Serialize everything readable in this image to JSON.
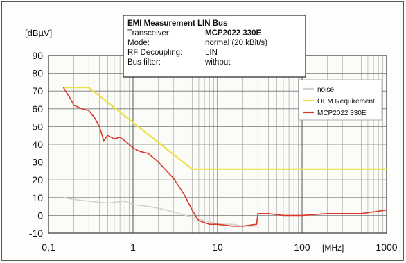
{
  "chart_data": {
    "type": "line",
    "ylabel": "[dBµV]",
    "xunit": "[MHz]",
    "xscale": "log",
    "xlim": [
      0.1,
      1000
    ],
    "ylim": [
      -10,
      90
    ],
    "yticks": [
      -10,
      0,
      10,
      20,
      30,
      40,
      50,
      60,
      70,
      80,
      90
    ],
    "xticks": [
      {
        "value": 0.1,
        "label": "0,1"
      },
      {
        "value": 1,
        "label": "1"
      },
      {
        "value": 10,
        "label": "10"
      },
      {
        "value": 100,
        "label": "100"
      },
      {
        "value": 1000,
        "label": "1000"
      }
    ],
    "grid": true,
    "legend_position": "top-right",
    "info_box": {
      "title": "EMI Measurement LIN Bus",
      "rows": [
        {
          "label": "Transceiver:",
          "value": "MCP2022 330E",
          "bold": true
        },
        {
          "label": "Mode:",
          "value": "normal (20 kBit/s)",
          "bold": false
        },
        {
          "label": "RF Decoupling:",
          "value": "LIN",
          "bold": false
        },
        {
          "label": "Bus filter:",
          "value": "without",
          "bold": false
        }
      ]
    },
    "series": [
      {
        "name": "noise",
        "color": "#d6d0cc",
        "x": [
          0.15,
          0.2,
          0.3,
          0.5,
          0.8,
          1.0,
          1.5,
          2,
          3,
          5,
          7,
          10,
          15,
          20,
          30
        ],
        "y": [
          10,
          9,
          8,
          7,
          8,
          6,
          5,
          4,
          2,
          -1,
          -3,
          -5,
          -5,
          -6,
          -6
        ]
      },
      {
        "name": "OEM Requirement",
        "color": "#eee04a",
        "x": [
          0.15,
          0.3,
          5,
          1000
        ],
        "y": [
          72,
          72,
          26,
          26
        ]
      },
      {
        "name": "MCP2022 330E",
        "color": "#d8382a",
        "x": [
          0.15,
          0.18,
          0.2,
          0.25,
          0.3,
          0.35,
          0.4,
          0.45,
          0.5,
          0.6,
          0.7,
          0.8,
          1.0,
          1.2,
          1.5,
          2,
          2.5,
          3,
          4,
          5,
          6,
          8,
          10,
          15,
          20,
          29,
          30,
          40,
          60,
          100,
          200,
          500,
          1000
        ],
        "y": [
          72,
          66,
          62,
          60,
          59,
          55,
          50,
          42,
          45,
          43,
          44,
          42,
          38,
          36,
          35,
          30,
          25,
          21,
          12,
          3,
          -3,
          -5,
          -5,
          -6,
          -6,
          -5,
          1,
          1,
          0,
          0,
          1,
          1,
          3
        ]
      }
    ]
  }
}
